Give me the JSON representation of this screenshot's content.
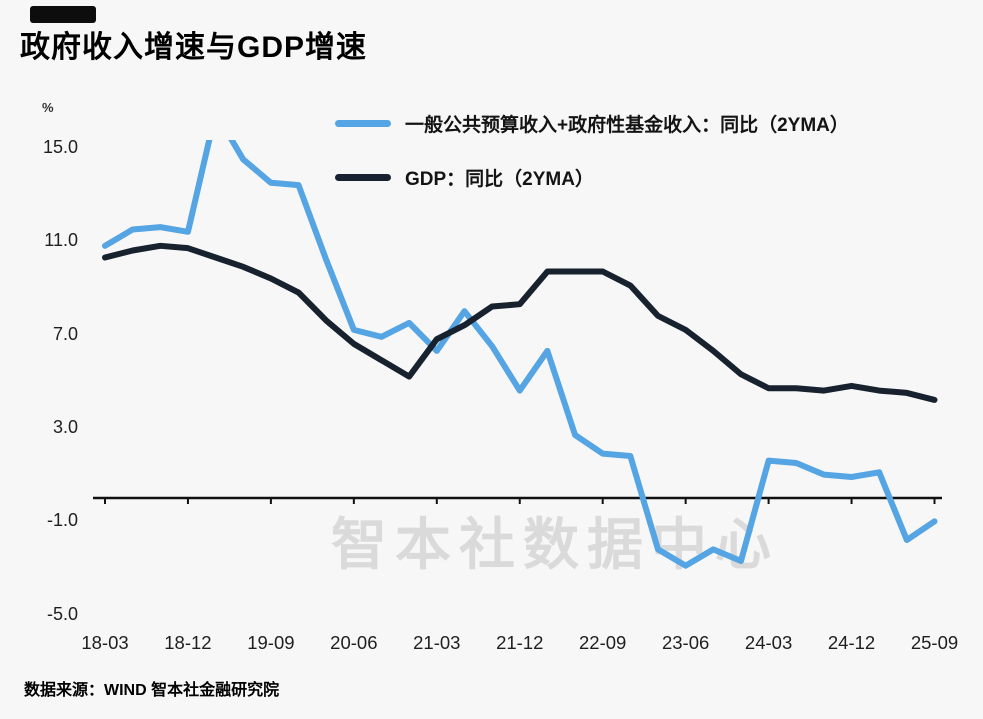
{
  "page": {
    "background": "#f7f7f7",
    "watermark": "智本社数据中心",
    "footer": "数据来源：WIND 智本社金融研究院"
  },
  "header": {
    "title": "政府收入增速与GDP增速"
  },
  "chart_data": {
    "type": "line",
    "title": "政府收入增速与GDP增速",
    "xlabel": "",
    "ylabel": "%",
    "ylim": [
      -5,
      15
    ],
    "grid": false,
    "legend_position": "top",
    "y_ticks": [
      15.0,
      11.0,
      7.0,
      3.0,
      -1.0,
      -5.0
    ],
    "x_tick_labels": [
      "18-03",
      "18-12",
      "19-09",
      "20-06",
      "21-03",
      "21-12",
      "22-09",
      "23-06",
      "24-03",
      "24-12",
      "25-09"
    ],
    "categories": [
      "18-03",
      "18-06",
      "18-09",
      "18-12",
      "19-03",
      "19-06",
      "19-09",
      "19-12",
      "20-03",
      "20-06",
      "20-09",
      "20-12",
      "21-03",
      "21-06",
      "21-09",
      "21-12",
      "22-03",
      "22-06",
      "22-09",
      "22-12",
      "23-03",
      "23-06",
      "23-09",
      "23-12",
      "24-03",
      "24-06",
      "24-09",
      "24-12",
      "25-03",
      "25-06",
      "25-09"
    ],
    "series": [
      {
        "name": "一般公共预算收入+政府性基金收入：同比（2YMA）",
        "color": "#55a4e3",
        "width": 6,
        "values": [
          10.8,
          11.5,
          11.6,
          11.4,
          16.5,
          14.5,
          13.5,
          13.4,
          10.2,
          7.2,
          6.9,
          7.5,
          6.3,
          8.0,
          6.5,
          4.6,
          6.3,
          2.7,
          1.9,
          1.8,
          -2.2,
          -2.9,
          -2.2,
          -2.7,
          1.6,
          1.5,
          1.0,
          0.9,
          1.1,
          -1.8,
          -1.0
        ]
      },
      {
        "name": "GDP：同比（2YMA）",
        "color": "#17222e",
        "width": 6,
        "values": [
          10.3,
          10.6,
          10.8,
          10.7,
          10.3,
          9.9,
          9.4,
          8.8,
          7.6,
          6.6,
          5.9,
          5.2,
          6.8,
          7.4,
          8.2,
          8.3,
          9.7,
          9.7,
          9.7,
          9.1,
          7.8,
          7.2,
          6.3,
          5.3,
          4.7,
          4.7,
          4.6,
          4.8,
          4.6,
          4.5,
          4.2
        ]
      }
    ]
  }
}
